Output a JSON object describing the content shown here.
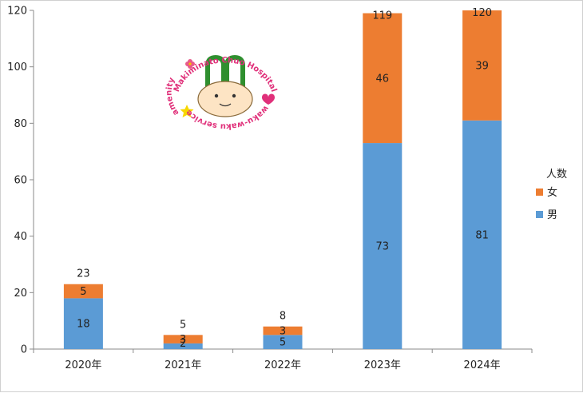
{
  "chart_data": {
    "type": "bar",
    "stacked": true,
    "categories": [
      "2020年",
      "2021年",
      "2022年",
      "2023年",
      "2024年"
    ],
    "series": [
      {
        "name": "男",
        "values": [
          18,
          2,
          5,
          73,
          81
        ],
        "color": "#5b9bd5"
      },
      {
        "name": "女",
        "values": [
          5,
          3,
          3,
          46,
          39
        ],
        "color": "#ed7d31"
      }
    ],
    "totals": [
      23,
      5,
      8,
      119,
      120
    ],
    "ylim": [
      0,
      120
    ],
    "yticks": [
      0,
      20,
      40,
      60,
      80,
      100,
      120
    ],
    "title": "",
    "xlabel": "",
    "ylabel": "",
    "grid": false,
    "legend": {
      "title": "人数",
      "placement": "right"
    }
  },
  "logo": {
    "text_top": "Makiminato Chuo Hospital",
    "text_bottom": "waku-waku service",
    "text_left": "amenity"
  }
}
